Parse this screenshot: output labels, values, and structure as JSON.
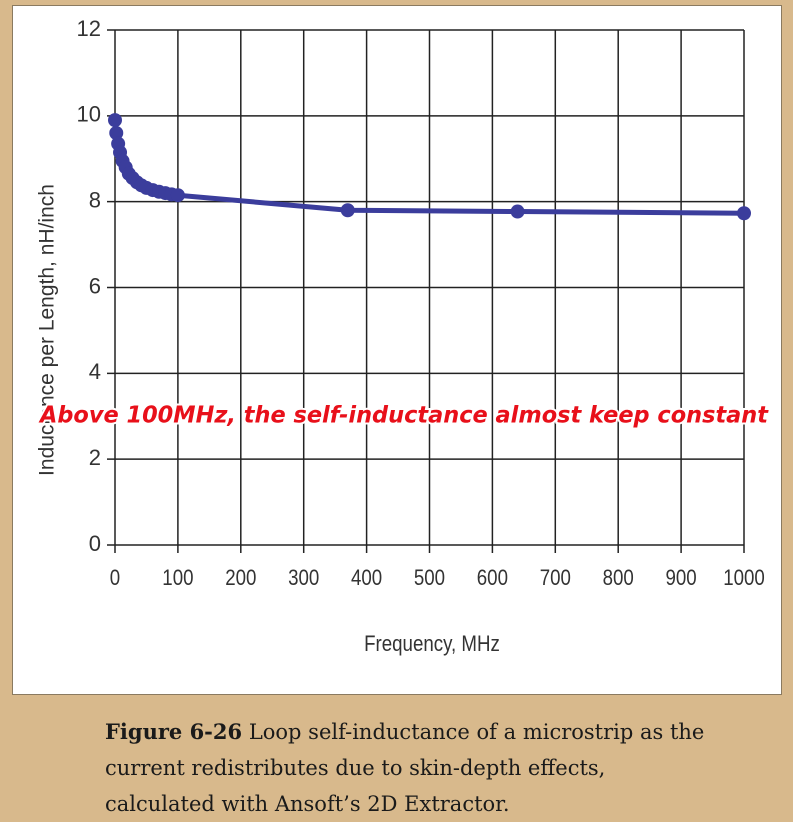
{
  "chart_data": {
    "type": "line",
    "x_label": "Frequency, MHz",
    "y_label": "Inductance per Length, nH/inch",
    "annotation": "Above 100MHz, the self-inductance almost keep constant",
    "x": [
      0,
      2,
      5,
      8,
      12,
      17,
      22,
      28,
      35,
      42,
      50,
      60,
      70,
      80,
      90,
      100,
      370,
      640,
      1000
    ],
    "series": [
      {
        "name": "Inductance",
        "color": "#3b3d9c",
        "values": [
          9.9,
          9.6,
          9.35,
          9.15,
          8.95,
          8.8,
          8.65,
          8.55,
          8.45,
          8.38,
          8.32,
          8.27,
          8.23,
          8.2,
          8.17,
          8.15,
          7.8,
          7.77,
          7.73
        ]
      }
    ],
    "xlim": [
      0,
      1000
    ],
    "xticks": [
      0,
      100,
      200,
      300,
      400,
      500,
      600,
      700,
      800,
      900,
      1000
    ],
    "ylim": [
      0,
      12
    ],
    "yticks": [
      0,
      2,
      4,
      6,
      8,
      10,
      12
    ],
    "grid": true,
    "caption": {
      "label": "Figure 6-26",
      "text": "Loop self-inductance of a microstrip as the current redistributes due to skin-depth effects, calculated with Ansoft’s 2D Extractor."
    }
  }
}
